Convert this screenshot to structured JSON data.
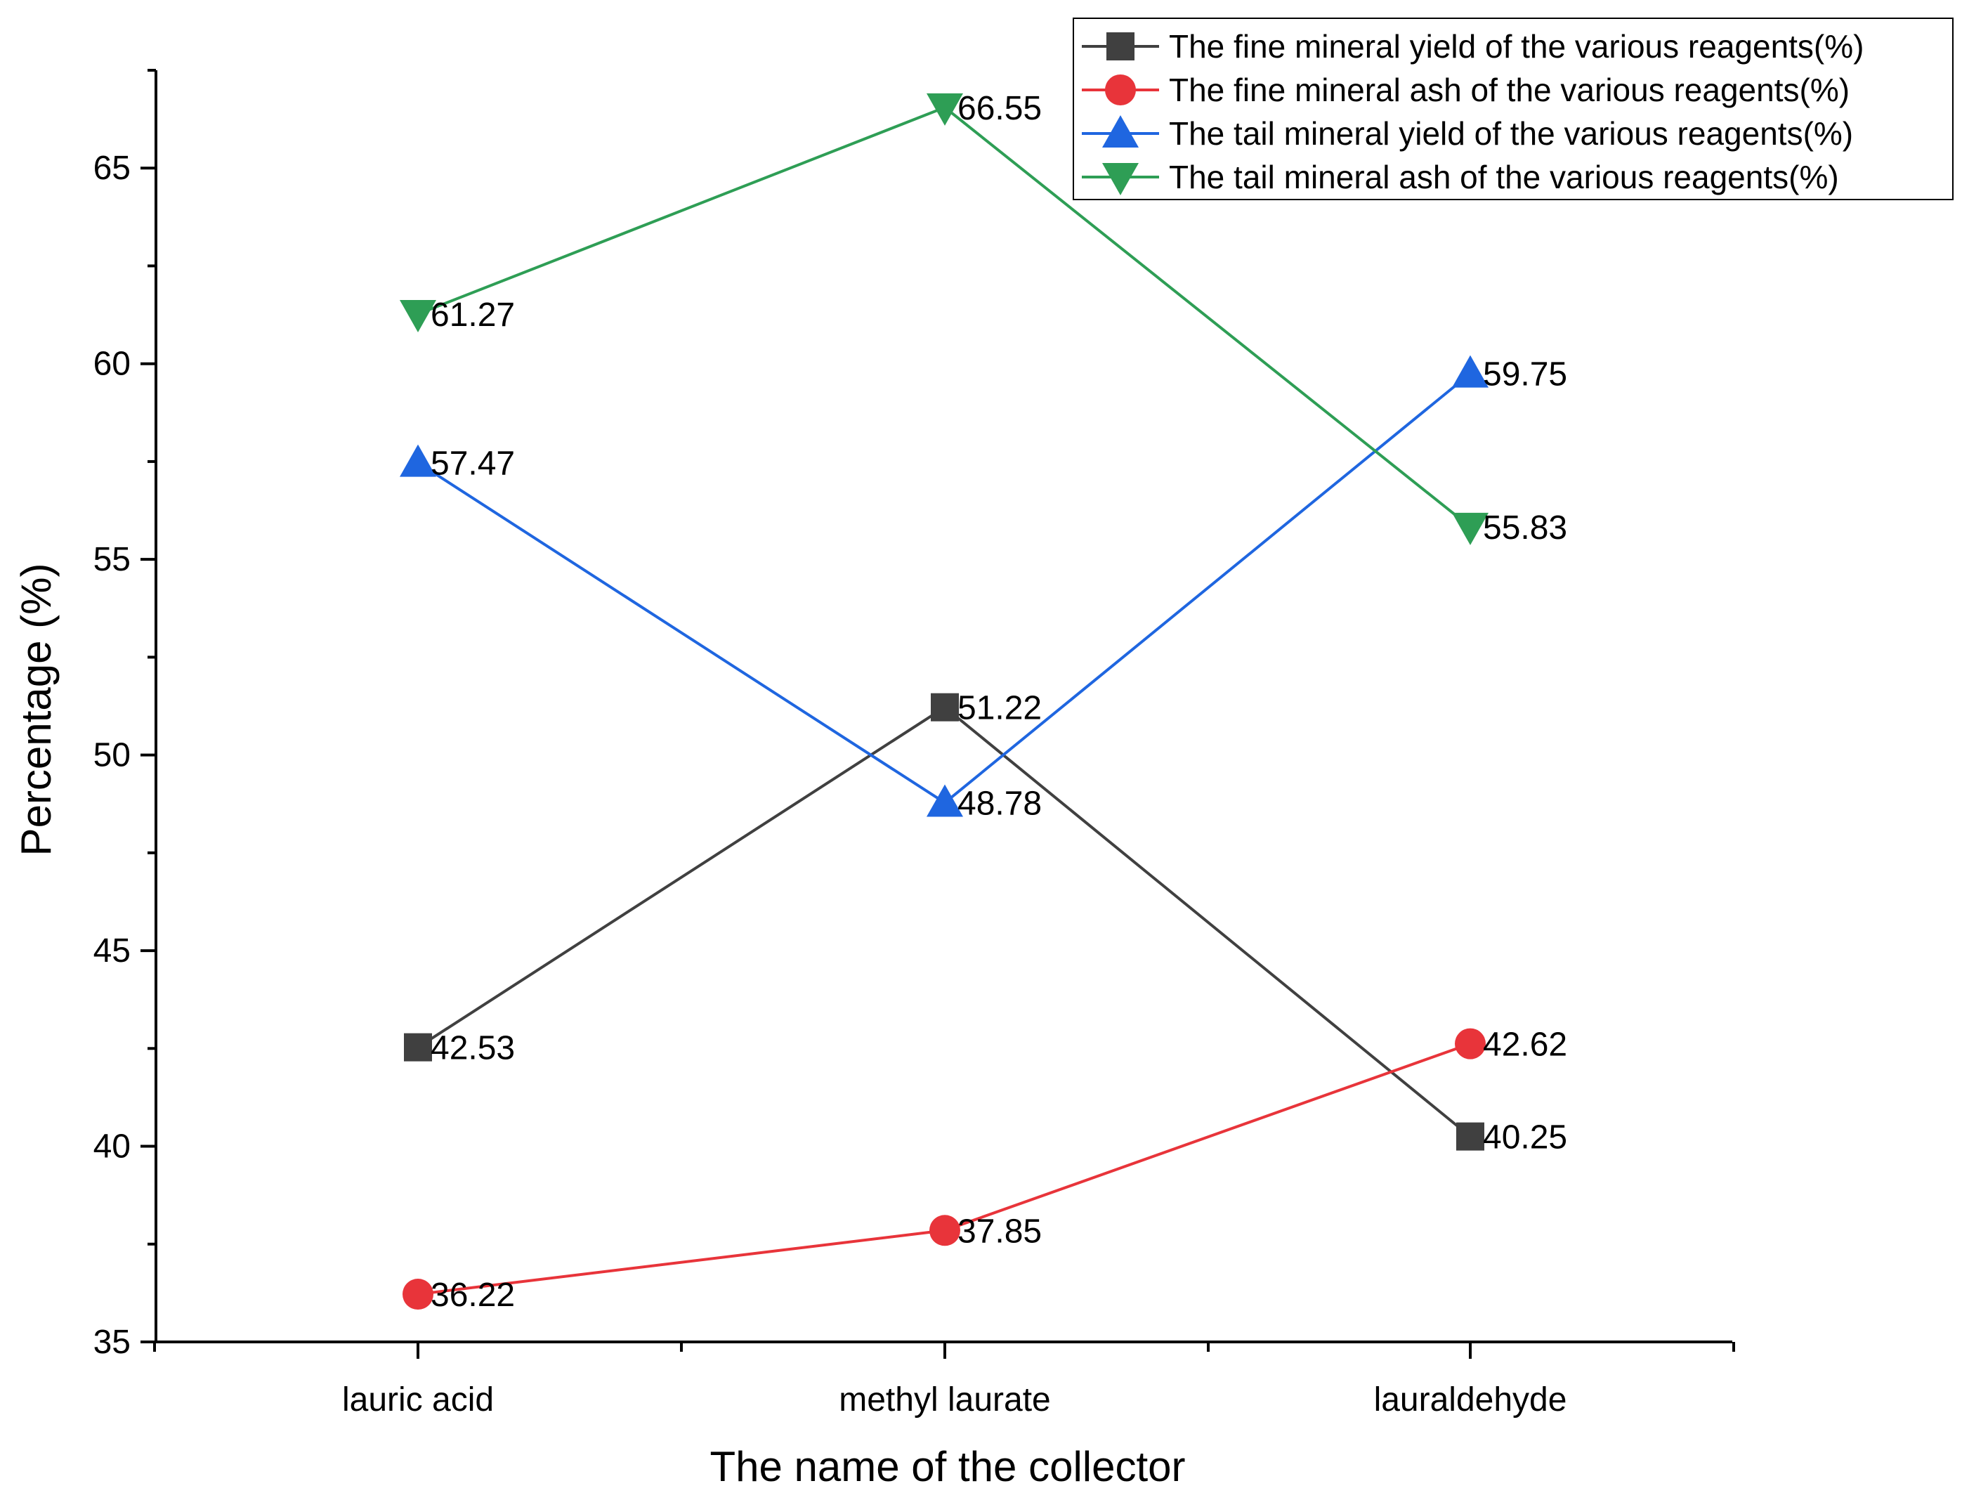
{
  "chart_data": {
    "type": "line",
    "title": "",
    "xlabel": "The name of the collector",
    "ylabel": "Percentage (%)",
    "categories": [
      "lauric acid",
      "methyl laurate",
      "lauraldehyde"
    ],
    "ylim": [
      35,
      67.5
    ],
    "yticks": [
      35,
      40,
      45,
      50,
      55,
      60,
      65
    ],
    "grid": false,
    "legend_position": "top-right",
    "series": [
      {
        "name": "The fine mineral yield of the various reagents(%)",
        "values": [
          42.53,
          51.22,
          40.25
        ],
        "labels": [
          "42.53",
          "51.22",
          "40.25"
        ],
        "color": "#404040",
        "marker": "square"
      },
      {
        "name": "The fine mineral ash of the various reagents(%)",
        "values": [
          36.22,
          37.85,
          42.62
        ],
        "labels": [
          "36.22",
          "37.85",
          "42.62"
        ],
        "color": "#e8343a",
        "marker": "circle"
      },
      {
        "name": "The tail mineral yield of the various reagents(%)",
        "values": [
          57.47,
          48.78,
          59.75
        ],
        "labels": [
          "57.47",
          "48.78",
          "59.75"
        ],
        "color": "#1f66e0",
        "marker": "triangle-up"
      },
      {
        "name": "The tail mineral ash of the various reagents(%)",
        "values": [
          61.27,
          66.55,
          55.83
        ],
        "labels": [
          "61.27",
          "66.55",
          "55.83"
        ],
        "color": "#2e9e55",
        "marker": "triangle-down"
      }
    ]
  }
}
